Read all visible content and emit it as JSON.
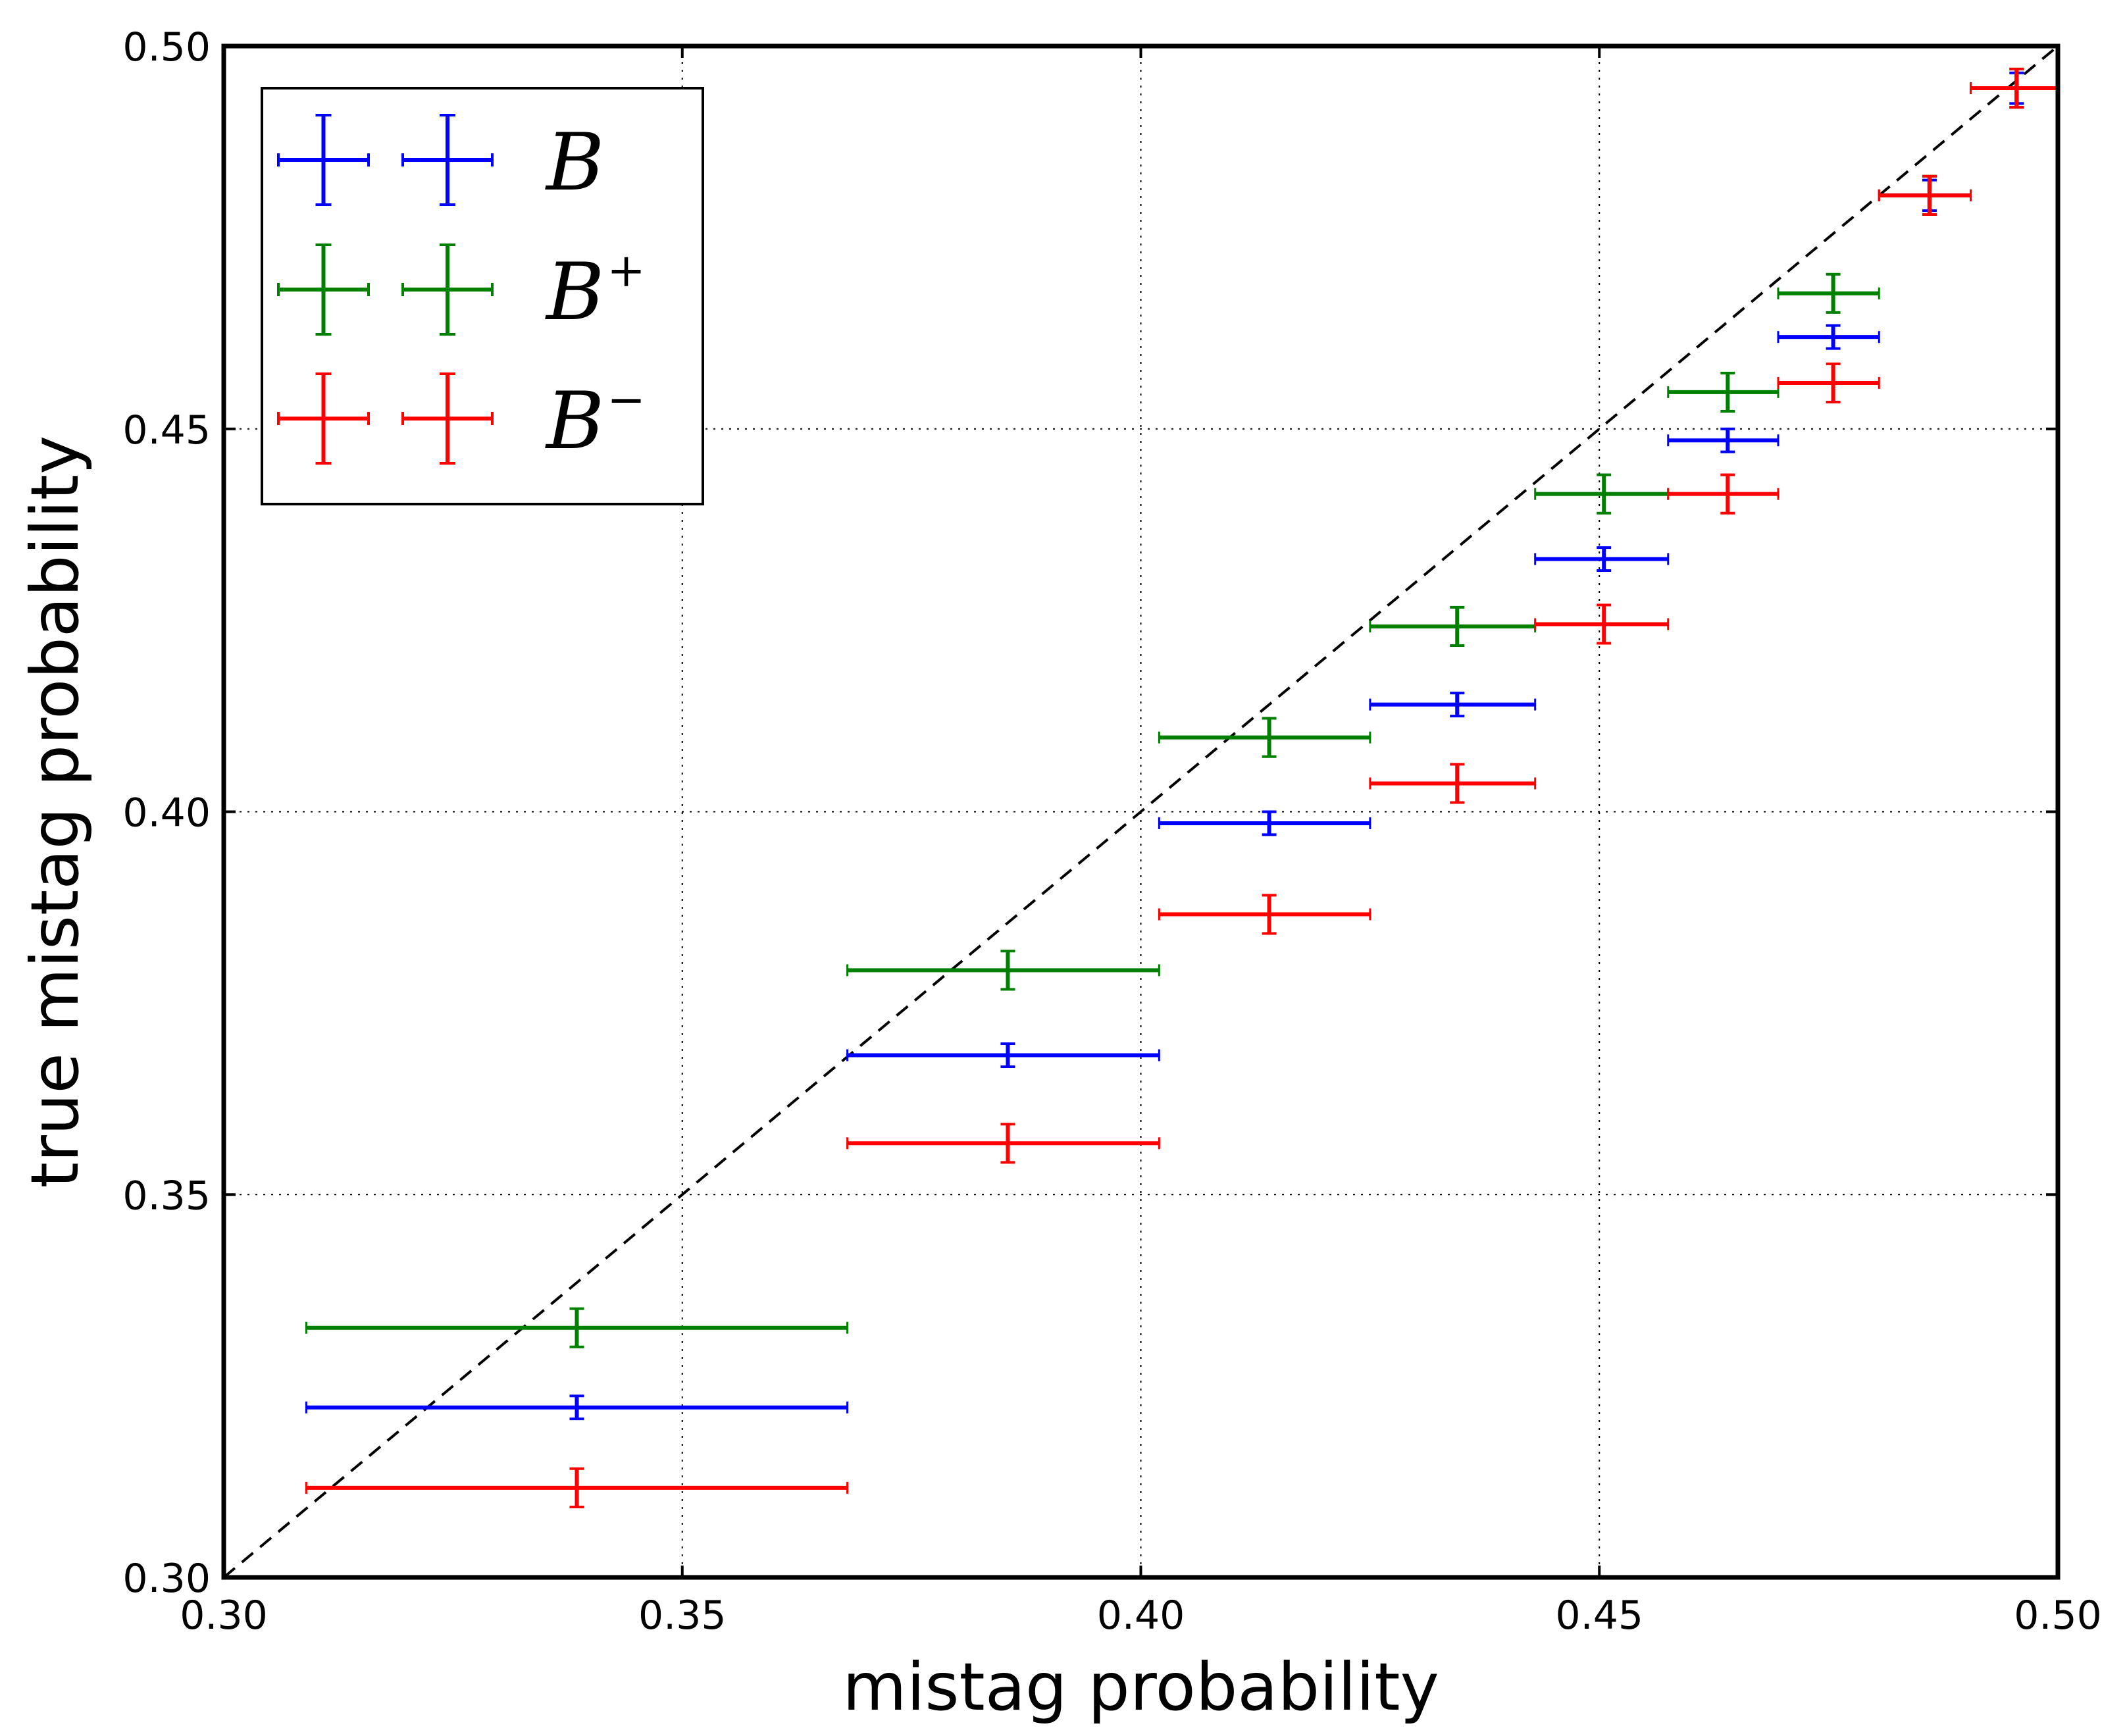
{
  "chart_data": {
    "type": "scatter",
    "xlabel": "mistag probability",
    "ylabel": "true mistag probability",
    "xlim": [
      0.3,
      0.5
    ],
    "ylim": [
      0.3,
      0.5
    ],
    "xticks": [
      "0.30",
      "0.35",
      "0.40",
      "0.45",
      "0.50"
    ],
    "yticks": [
      "0.30",
      "0.35",
      "0.40",
      "0.45",
      "0.50"
    ],
    "grid": true,
    "grid_style": "dotted",
    "diagonal_reference": {
      "from": [
        0.3,
        0.3
      ],
      "to": [
        0.5,
        0.5
      ],
      "style": "dashed",
      "color": "#000000"
    },
    "legend_position": "top-left",
    "bins": [
      [
        0.309,
        0.368
      ],
      [
        0.368,
        0.402
      ],
      [
        0.402,
        0.425
      ],
      [
        0.425,
        0.443
      ],
      [
        0.443,
        0.4575
      ],
      [
        0.4575,
        0.4695
      ],
      [
        0.4695,
        0.4805
      ],
      [
        0.4805,
        0.4905
      ],
      [
        0.4905,
        0.5
      ]
    ],
    "series": [
      {
        "name": "B",
        "color": "#0000ff",
        "points": [
          {
            "x": 0.3385,
            "xerr": [
              0.309,
              0.368
            ],
            "y": 0.3222,
            "yerr": 0.0015
          },
          {
            "x": 0.3855,
            "xerr": [
              0.368,
              0.402
            ],
            "y": 0.3682,
            "yerr": 0.0015
          },
          {
            "x": 0.414,
            "xerr": [
              0.402,
              0.425
            ],
            "y": 0.3985,
            "yerr": 0.0015
          },
          {
            "x": 0.4345,
            "xerr": [
              0.425,
              0.443
            ],
            "y": 0.414,
            "yerr": 0.0015
          },
          {
            "x": 0.4505,
            "xerr": [
              0.443,
              0.4575
            ],
            "y": 0.433,
            "yerr": 0.0015
          },
          {
            "x": 0.464,
            "xerr": [
              0.4575,
              0.4695
            ],
            "y": 0.4485,
            "yerr": 0.0015
          },
          {
            "x": 0.4755,
            "xerr": [
              0.4695,
              0.4805
            ],
            "y": 0.462,
            "yerr": 0.0015
          },
          {
            "x": 0.486,
            "xerr": [
              0.4805,
              0.4905
            ],
            "y": 0.4805,
            "yerr": 0.002
          },
          {
            "x": 0.4955,
            "xerr": [
              0.4905,
              0.5
            ],
            "y": 0.4945,
            "yerr": 0.002
          }
        ]
      },
      {
        "name": "B+",
        "color": "#008000",
        "points": [
          {
            "x": 0.3385,
            "xerr": [
              0.309,
              0.368
            ],
            "y": 0.3326,
            "yerr": 0.0025
          },
          {
            "x": 0.3855,
            "xerr": [
              0.368,
              0.402
            ],
            "y": 0.3793,
            "yerr": 0.0025
          },
          {
            "x": 0.414,
            "xerr": [
              0.402,
              0.425
            ],
            "y": 0.4097,
            "yerr": 0.0025
          },
          {
            "x": 0.4345,
            "xerr": [
              0.425,
              0.443
            ],
            "y": 0.4242,
            "yerr": 0.0025
          },
          {
            "x": 0.4505,
            "xerr": [
              0.443,
              0.4575
            ],
            "y": 0.4415,
            "yerr": 0.0025
          },
          {
            "x": 0.464,
            "xerr": [
              0.4575,
              0.4695
            ],
            "y": 0.4548,
            "yerr": 0.0025
          },
          {
            "x": 0.4755,
            "xerr": [
              0.4695,
              0.4805
            ],
            "y": 0.4677,
            "yerr": 0.0025
          },
          {
            "x": 0.486,
            "xerr": [
              0.4805,
              0.4905
            ],
            "y": 0.4805,
            "yerr": 0.0025
          },
          {
            "x": 0.4955,
            "xerr": [
              0.4905,
              0.5
            ],
            "y": 0.4945,
            "yerr": 0.0025
          }
        ]
      },
      {
        "name": "B-",
        "color": "#ff0000",
        "points": [
          {
            "x": 0.3385,
            "xerr": [
              0.309,
              0.368
            ],
            "y": 0.3117,
            "yerr": 0.0025
          },
          {
            "x": 0.3855,
            "xerr": [
              0.368,
              0.402
            ],
            "y": 0.3567,
            "yerr": 0.0025
          },
          {
            "x": 0.414,
            "xerr": [
              0.402,
              0.425
            ],
            "y": 0.3866,
            "yerr": 0.0025
          },
          {
            "x": 0.4345,
            "xerr": [
              0.425,
              0.443
            ],
            "y": 0.4037,
            "yerr": 0.0025
          },
          {
            "x": 0.4505,
            "xerr": [
              0.443,
              0.4575
            ],
            "y": 0.4245,
            "yerr": 0.0025
          },
          {
            "x": 0.464,
            "xerr": [
              0.4575,
              0.4695
            ],
            "y": 0.4415,
            "yerr": 0.0025
          },
          {
            "x": 0.4755,
            "xerr": [
              0.4695,
              0.4805
            ],
            "y": 0.456,
            "yerr": 0.0025
          },
          {
            "x": 0.486,
            "xerr": [
              0.4805,
              0.4905
            ],
            "y": 0.4805,
            "yerr": 0.0025
          },
          {
            "x": 0.4955,
            "xerr": [
              0.4905,
              0.5
            ],
            "y": 0.4945,
            "yerr": 0.0025
          }
        ]
      }
    ],
    "legend": [
      {
        "label_base": "B",
        "label_sup": "",
        "color": "#0000ff"
      },
      {
        "label_base": "B",
        "label_sup": "+",
        "color": "#008000"
      },
      {
        "label_base": "B",
        "label_sup": "−",
        "color": "#ff0000"
      }
    ]
  }
}
